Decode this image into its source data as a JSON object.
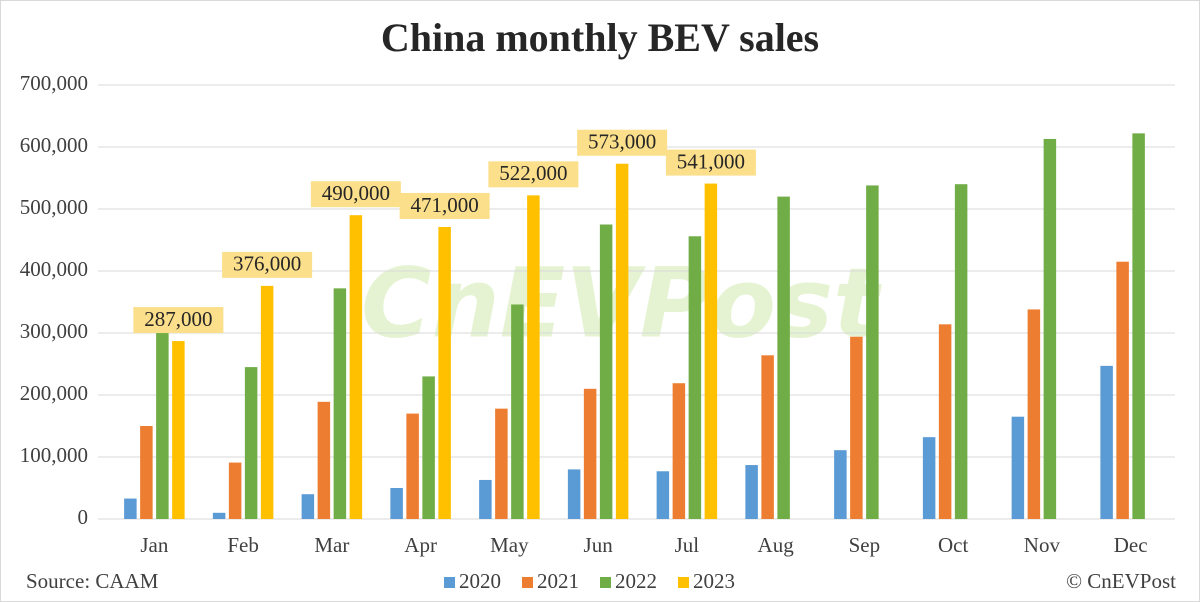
{
  "chart_data": {
    "type": "bar",
    "title": "China monthly BEV sales",
    "categories": [
      "Jan",
      "Feb",
      "Mar",
      "Apr",
      "May",
      "Jun",
      "Jul",
      "Aug",
      "Sep",
      "Oct",
      "Nov",
      "Dec"
    ],
    "series": [
      {
        "name": "2020",
        "color": "#5b9bd5",
        "values": [
          33000,
          10000,
          40000,
          50000,
          63000,
          80000,
          77000,
          87000,
          111000,
          132000,
          165000,
          247000
        ]
      },
      {
        "name": "2021",
        "color": "#ed7d31",
        "values": [
          150000,
          91000,
          189000,
          170000,
          178000,
          210000,
          219000,
          264000,
          294000,
          314000,
          338000,
          415000
        ]
      },
      {
        "name": "2022",
        "color": "#70ad47",
        "values": [
          300000,
          245000,
          372000,
          230000,
          346000,
          475000,
          456000,
          520000,
          538000,
          540000,
          613000,
          622000
        ]
      },
      {
        "name": "2023",
        "color": "#ffc000",
        "values": [
          287000,
          376000,
          490000,
          471000,
          522000,
          573000,
          541000,
          null,
          null,
          null,
          null,
          null
        ],
        "value_labels": [
          "287,000",
          "376,000",
          "490,000",
          "471,000",
          "522,000",
          "573,000",
          "541,000",
          null,
          null,
          null,
          null,
          null
        ]
      }
    ],
    "ylim": [
      0,
      700000
    ],
    "yticks": [
      0,
      {
        "value": 100000,
        "label": "100,000"
      },
      {
        "value": 200000,
        "label": "200,000"
      },
      {
        "value": 300000,
        "label": "300,000"
      },
      {
        "value": 400000,
        "label": "400,000"
      },
      {
        "value": 500000,
        "label": "500,000"
      },
      {
        "value": 600000,
        "label": "600,000"
      },
      {
        "value": 700000,
        "label": "700,000"
      }
    ],
    "grid": true,
    "legend": "bottom",
    "source": "Source: CAAM",
    "credit": "© CnEVPost",
    "watermark": "CnEVPost"
  }
}
